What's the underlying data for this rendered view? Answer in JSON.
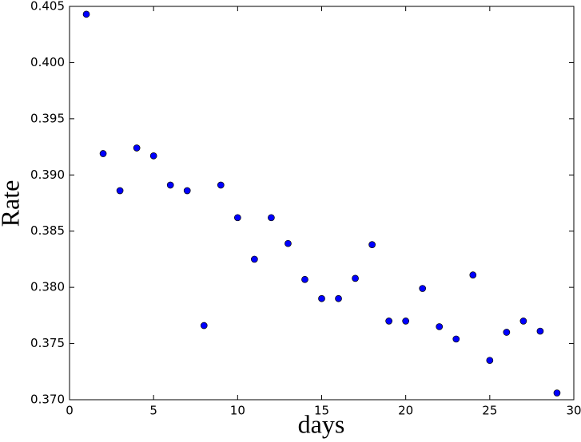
{
  "chart_data": {
    "type": "scatter",
    "xlabel": "days",
    "ylabel": "Rate",
    "x": [
      1,
      2,
      3,
      4,
      5,
      6,
      7,
      8,
      9,
      10,
      11,
      12,
      13,
      14,
      15,
      16,
      17,
      18,
      19,
      20,
      21,
      22,
      23,
      24,
      25,
      26,
      27,
      28,
      29
    ],
    "values": [
      0.4043,
      0.3919,
      0.3886,
      0.3924,
      0.3917,
      0.3891,
      0.3886,
      0.3766,
      0.3891,
      0.3862,
      0.3825,
      0.3862,
      0.3839,
      0.3807,
      0.379,
      0.379,
      0.3808,
      0.3838,
      0.377,
      0.377,
      0.3799,
      0.3765,
      0.3754,
      0.3811,
      0.3735,
      0.376,
      0.377,
      0.3761,
      0.3706
    ],
    "color": "#0000ff",
    "xlim": [
      0,
      30
    ],
    "xticks": [
      0,
      5,
      10,
      15,
      20,
      25,
      30
    ],
    "ylim": [
      0.37,
      0.405
    ],
    "yticks": [
      {
        "value": 0.37,
        "label": "0.370"
      },
      0.375,
      {
        "value": 0.38,
        "label": "0.380"
      },
      0.385,
      {
        "value": 0.39,
        "label": "0.390"
      },
      0.395,
      {
        "value": 0.4,
        "label": "0.400"
      },
      0.405
    ]
  }
}
